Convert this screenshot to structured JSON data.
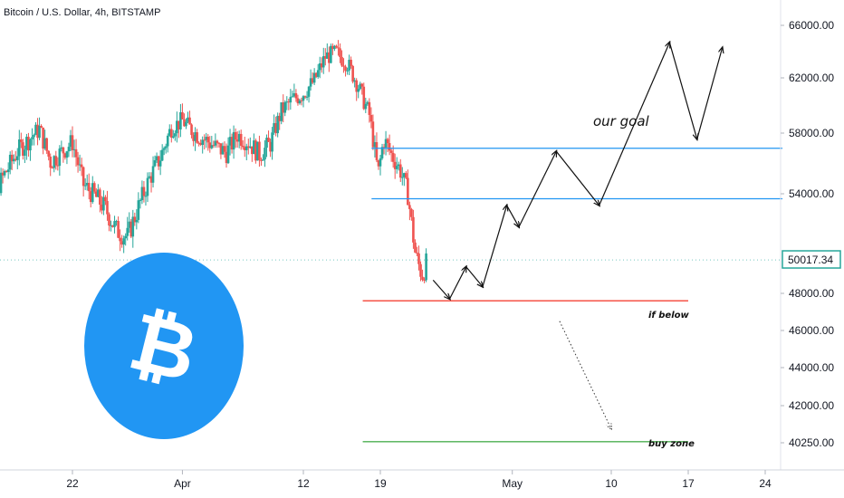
{
  "header": {
    "title": "Bitcoin / U.S. Dollar, 4h, BITSTAMP"
  },
  "colors": {
    "up": "#26a69a",
    "down": "#ef5350",
    "resistance_line": "#2196f3",
    "if_below_line": "#f44336",
    "buy_zone_line": "#4caf50",
    "logo_circle": "#2196f3",
    "price_tag_border": "#26a69a"
  },
  "logo": {
    "icon": "bitcoin-icon",
    "glyph": "₿"
  },
  "annotations": {
    "goal_text": "our goal",
    "if_below_text": "if below",
    "buy_zone_text": "buy zone"
  },
  "chart_data": {
    "type": "candlestick",
    "title": "Bitcoin / U.S. Dollar, 4h, BITSTAMP",
    "current_price": "50017.34",
    "y_ticks": [
      "66000.00",
      "62000.00",
      "58000.00",
      "54000.00",
      "48000.00",
      "46000.00",
      "44000.00",
      "42000.00",
      "40250.00"
    ],
    "y_tick_values": [
      66000,
      62000,
      58000,
      54000,
      48000,
      46000,
      44000,
      42000,
      40250
    ],
    "x_ticks": [
      "22",
      "Apr",
      "12",
      "19",
      "May",
      "10",
      "17",
      "24"
    ],
    "x_tick_days": [
      22,
      32,
      43,
      50,
      62,
      71,
      78,
      85
    ],
    "x_axis_day_origin": "Mar 0",
    "ylim": [
      39500,
      67000
    ],
    "xlim": [
      13,
      88
    ],
    "grid": false,
    "price_path": [
      [
        13,
        55500
      ],
      [
        15,
        54200
      ],
      [
        17,
        56800
      ],
      [
        19,
        58300
      ],
      [
        20,
        56100
      ],
      [
        22,
        57400
      ],
      [
        23,
        54600
      ],
      [
        24,
        53900
      ],
      [
        25,
        53100
      ],
      [
        26,
        51800
      ],
      [
        27,
        51400
      ],
      [
        28,
        53200
      ],
      [
        29,
        55000
      ],
      [
        30,
        56400
      ],
      [
        31,
        58400
      ],
      [
        32,
        58900
      ],
      [
        33,
        58100
      ],
      [
        34,
        57600
      ],
      [
        35,
        57100
      ],
      [
        36,
        56700
      ],
      [
        37,
        57900
      ],
      [
        38,
        57400
      ],
      [
        39,
        56600
      ],
      [
        40,
        57300
      ],
      [
        41,
        59600
      ],
      [
        42,
        60400
      ],
      [
        43,
        60900
      ],
      [
        44,
        61800
      ],
      [
        45,
        63600
      ],
      [
        46,
        63900
      ],
      [
        47,
        63100
      ],
      [
        48,
        61400
      ],
      [
        49,
        59300
      ],
      [
        49.8,
        55300
      ],
      [
        50.3,
        57600
      ],
      [
        51,
        56600
      ],
      [
        51.8,
        55600
      ],
      [
        52.5,
        54000
      ],
      [
        53.2,
        50300
      ],
      [
        53.8,
        49100
      ],
      [
        54.3,
        50000
      ]
    ],
    "levels": [
      {
        "label": "",
        "value": 57000,
        "from_day": 49.2,
        "to_day": 88
      },
      {
        "label": "",
        "value": 53700,
        "from_day": 49.2,
        "to_day": 88
      },
      {
        "label": "if below",
        "value": 47600,
        "from_day": 48.4,
        "to_day": 78
      },
      {
        "label": "buy zone",
        "value": 40300,
        "from_day": 48.4,
        "to_day": 78
      }
    ],
    "projection_path": [
      [
        54.8,
        48800
      ],
      [
        56.3,
        47700
      ],
      [
        57.8,
        49600
      ],
      [
        59.3,
        48400
      ],
      [
        61.5,
        53300
      ],
      [
        62.6,
        52000
      ],
      [
        66.0,
        56800
      ],
      [
        69.9,
        53300
      ],
      [
        76.3,
        64700
      ],
      [
        78.8,
        57600
      ],
      [
        81.1,
        64300
      ]
    ],
    "drop_arrow": [
      [
        66.3,
        46500
      ],
      [
        71.0,
        40900
      ]
    ]
  }
}
